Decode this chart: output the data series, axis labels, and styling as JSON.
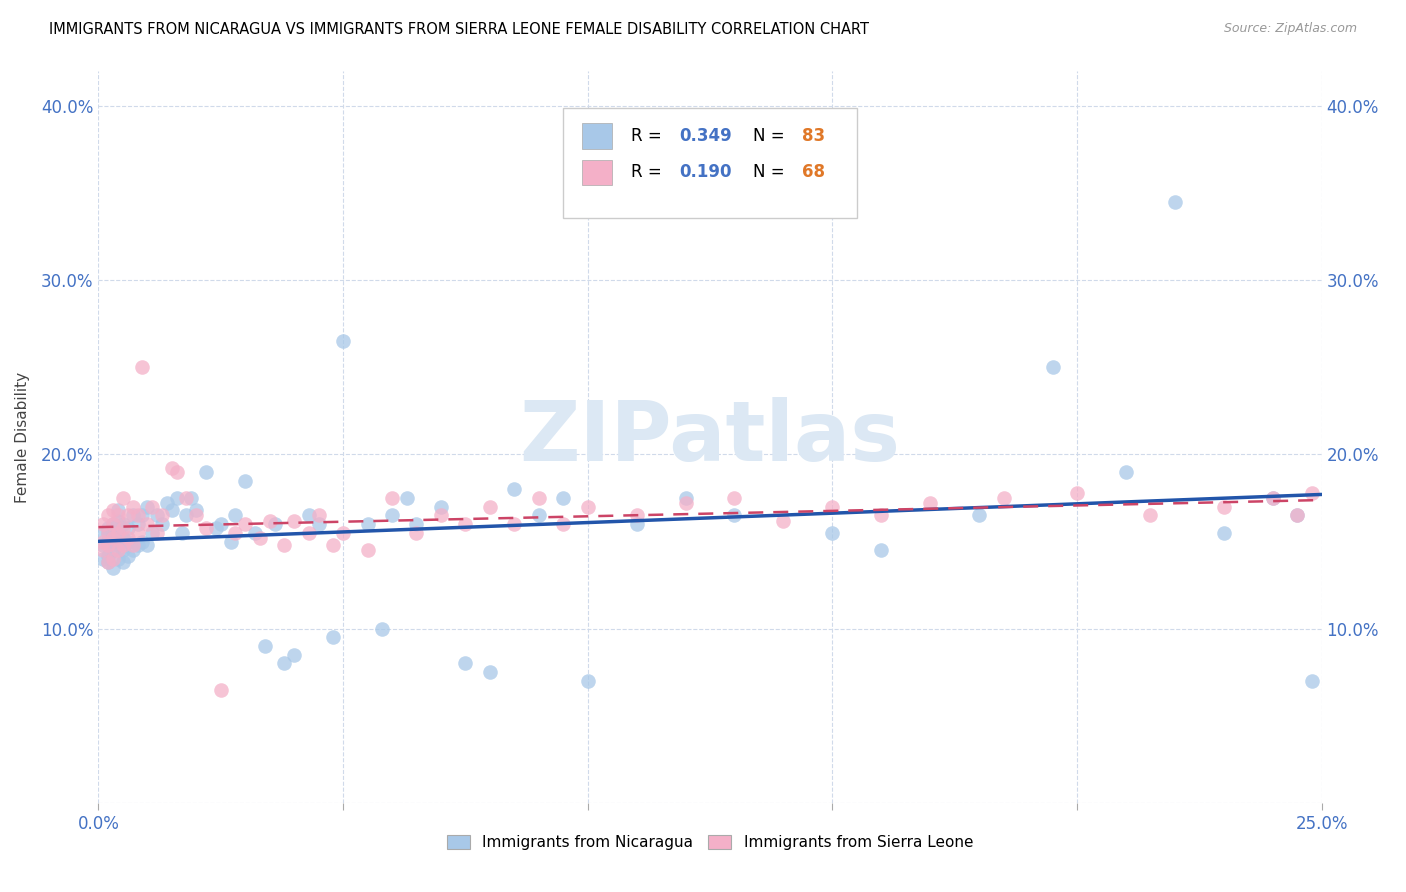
{
  "title": "IMMIGRANTS FROM NICARAGUA VS IMMIGRANTS FROM SIERRA LEONE FEMALE DISABILITY CORRELATION CHART",
  "source": "Source: ZipAtlas.com",
  "ylabel": "Female Disability",
  "xlim": [
    0.0,
    0.25
  ],
  "ylim": [
    0.0,
    0.42
  ],
  "nicaragua_color": "#a8c8e8",
  "nicaragua_line_color": "#2255aa",
  "sierraleone_color": "#f4b0c8",
  "sierraleone_line_color": "#cc4466",
  "tick_color": "#4472c4",
  "grid_color": "#d0daea",
  "watermark": "ZIPatlas",
  "watermark_color": "#dce8f4",
  "legend_border_color": "#cccccc",
  "nicaragua_x": [
    0.001,
    0.001,
    0.001,
    0.002,
    0.002,
    0.002,
    0.002,
    0.002,
    0.003,
    0.003,
    0.003,
    0.003,
    0.003,
    0.004,
    0.004,
    0.004,
    0.004,
    0.004,
    0.005,
    0.005,
    0.005,
    0.005,
    0.006,
    0.006,
    0.006,
    0.007,
    0.007,
    0.008,
    0.008,
    0.009,
    0.009,
    0.01,
    0.01,
    0.011,
    0.012,
    0.013,
    0.014,
    0.015,
    0.016,
    0.017,
    0.018,
    0.019,
    0.02,
    0.022,
    0.024,
    0.025,
    0.027,
    0.028,
    0.03,
    0.032,
    0.034,
    0.036,
    0.038,
    0.04,
    0.043,
    0.045,
    0.048,
    0.05,
    0.055,
    0.058,
    0.06,
    0.063,
    0.065,
    0.07,
    0.075,
    0.08,
    0.085,
    0.09,
    0.095,
    0.1,
    0.11,
    0.12,
    0.13,
    0.15,
    0.16,
    0.18,
    0.195,
    0.21,
    0.22,
    0.23,
    0.24,
    0.245,
    0.248
  ],
  "nicaragua_y": [
    0.14,
    0.148,
    0.155,
    0.138,
    0.142,
    0.15,
    0.155,
    0.158,
    0.135,
    0.145,
    0.15,
    0.155,
    0.16,
    0.14,
    0.148,
    0.155,
    0.162,
    0.168,
    0.138,
    0.145,
    0.152,
    0.16,
    0.142,
    0.15,
    0.158,
    0.145,
    0.165,
    0.148,
    0.16,
    0.15,
    0.165,
    0.148,
    0.17,
    0.155,
    0.165,
    0.16,
    0.172,
    0.168,
    0.175,
    0.155,
    0.165,
    0.175,
    0.168,
    0.19,
    0.158,
    0.16,
    0.15,
    0.165,
    0.185,
    0.155,
    0.09,
    0.16,
    0.08,
    0.085,
    0.165,
    0.16,
    0.095,
    0.265,
    0.16,
    0.1,
    0.165,
    0.175,
    0.16,
    0.17,
    0.08,
    0.075,
    0.18,
    0.165,
    0.175,
    0.07,
    0.16,
    0.175,
    0.165,
    0.155,
    0.145,
    0.165,
    0.25,
    0.19,
    0.345,
    0.155,
    0.175,
    0.165,
    0.07
  ],
  "sierraleone_x": [
    0.001,
    0.001,
    0.001,
    0.002,
    0.002,
    0.002,
    0.002,
    0.003,
    0.003,
    0.003,
    0.003,
    0.004,
    0.004,
    0.004,
    0.005,
    0.005,
    0.005,
    0.006,
    0.006,
    0.007,
    0.007,
    0.008,
    0.008,
    0.009,
    0.01,
    0.011,
    0.012,
    0.013,
    0.015,
    0.016,
    0.018,
    0.02,
    0.022,
    0.025,
    0.028,
    0.03,
    0.033,
    0.035,
    0.038,
    0.04,
    0.043,
    0.045,
    0.048,
    0.05,
    0.055,
    0.06,
    0.065,
    0.07,
    0.075,
    0.08,
    0.085,
    0.09,
    0.095,
    0.1,
    0.11,
    0.12,
    0.13,
    0.14,
    0.15,
    0.16,
    0.17,
    0.185,
    0.2,
    0.215,
    0.23,
    0.24,
    0.245,
    0.248
  ],
  "sierraleone_y": [
    0.145,
    0.15,
    0.16,
    0.138,
    0.148,
    0.155,
    0.165,
    0.14,
    0.152,
    0.16,
    0.168,
    0.145,
    0.155,
    0.165,
    0.148,
    0.158,
    0.175,
    0.152,
    0.165,
    0.148,
    0.17,
    0.155,
    0.165,
    0.25,
    0.16,
    0.17,
    0.155,
    0.165,
    0.192,
    0.19,
    0.175,
    0.165,
    0.158,
    0.065,
    0.155,
    0.16,
    0.152,
    0.162,
    0.148,
    0.162,
    0.155,
    0.165,
    0.148,
    0.155,
    0.145,
    0.175,
    0.155,
    0.165,
    0.16,
    0.17,
    0.16,
    0.175,
    0.16,
    0.17,
    0.165,
    0.172,
    0.175,
    0.162,
    0.17,
    0.165,
    0.172,
    0.175,
    0.178,
    0.165,
    0.17,
    0.175,
    0.165,
    0.178
  ]
}
